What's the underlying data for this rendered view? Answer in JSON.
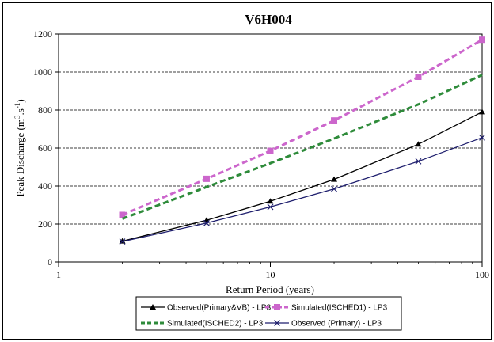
{
  "chart_data": {
    "type": "line",
    "title": "V6H004",
    "xlabel": "Return Period (years)",
    "ylabel": "Peak Discharge (m³.s⁻¹)",
    "ylabel_parts": {
      "pre": "Peak Discharge (m",
      "sup1": "3",
      "mid": ".s",
      "sup2": "-1",
      "post": ")"
    },
    "x_scale": "log",
    "xlim": [
      1,
      100
    ],
    "ylim": [
      0,
      1200
    ],
    "x_ticks": [
      1,
      10,
      100
    ],
    "x_tick_labels": [
      "1",
      "10",
      "100"
    ],
    "y_ticks": [
      0,
      200,
      400,
      600,
      800,
      1000,
      1200
    ],
    "y_tick_labels": [
      "0",
      "200",
      "400",
      "600",
      "800",
      "1000",
      "1200"
    ],
    "grid": "horizontal dashed",
    "legend_position": "bottom",
    "x": [
      2,
      5,
      10,
      20,
      50,
      100
    ],
    "series": [
      {
        "name": "Observed(Primary&VB) - LP3",
        "values": [
          110,
          220,
          320,
          435,
          620,
          790
        ],
        "color": "#000000",
        "marker": "triangle",
        "dash": "solid"
      },
      {
        "name": "Simulated(ISCHED1) - LP3",
        "values": [
          248,
          438,
          585,
          745,
          975,
          1170
        ],
        "color": "#cc66cc",
        "marker": "square",
        "dash": "dashed"
      },
      {
        "name": "Simulated(ISCHED2) - LP3",
        "values": [
          228,
          395,
          520,
          650,
          830,
          985
        ],
        "color": "#2e8b3a",
        "marker": "none",
        "dash": "dashed"
      },
      {
        "name": "Observed (Primary) - LP3",
        "values": [
          108,
          205,
          290,
          385,
          530,
          655
        ],
        "color": "#1f1f6e",
        "marker": "x",
        "dash": "solid"
      }
    ]
  }
}
